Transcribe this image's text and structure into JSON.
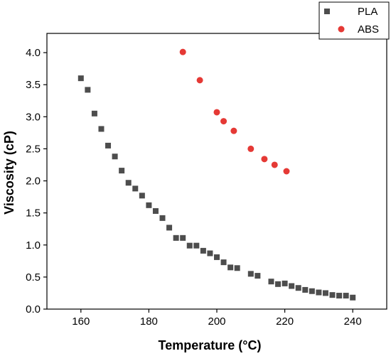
{
  "chart_data": {
    "type": "scatter",
    "xlabel": "Temperature (°C)",
    "ylabel": "Viscosity (cP)",
    "xlim": [
      150,
      250
    ],
    "ylim": [
      0,
      4.3
    ],
    "x_ticks": [
      160,
      180,
      200,
      220,
      240
    ],
    "y_ticks": [
      0.0,
      0.5,
      1.0,
      1.5,
      2.0,
      2.5,
      3.0,
      3.5,
      4.0
    ],
    "x_tick_labels": [
      "160",
      "180",
      "200",
      "220",
      "240"
    ],
    "y_tick_labels": [
      "0.0",
      "0.5",
      "1.0",
      "1.5",
      "2.0",
      "2.5",
      "3.0",
      "3.5",
      "4.0"
    ],
    "grid": false,
    "legend": "top-right, outside plot",
    "series": [
      {
        "name": "PLA",
        "marker": "square",
        "color": "#4d4d4d",
        "points": [
          [
            160,
            3.6
          ],
          [
            162,
            3.42
          ],
          [
            164,
            3.05
          ],
          [
            166,
            2.81
          ],
          [
            168,
            2.55
          ],
          [
            170,
            2.38
          ],
          [
            172,
            2.16
          ],
          [
            174,
            1.97
          ],
          [
            176,
            1.88
          ],
          [
            178,
            1.77
          ],
          [
            180,
            1.62
          ],
          [
            182,
            1.53
          ],
          [
            184,
            1.42
          ],
          [
            186,
            1.27
          ],
          [
            188,
            1.11
          ],
          [
            190,
            1.11
          ],
          [
            192,
            0.99
          ],
          [
            194,
            0.99
          ],
          [
            196,
            0.91
          ],
          [
            198,
            0.87
          ],
          [
            200,
            0.81
          ],
          [
            202,
            0.73
          ],
          [
            204,
            0.65
          ],
          [
            206,
            0.64
          ],
          [
            210,
            0.55
          ],
          [
            212,
            0.52
          ],
          [
            216,
            0.43
          ],
          [
            218,
            0.39
          ],
          [
            220,
            0.4
          ],
          [
            222,
            0.36
          ],
          [
            224,
            0.33
          ],
          [
            226,
            0.3
          ],
          [
            228,
            0.28
          ],
          [
            230,
            0.26
          ],
          [
            232,
            0.25
          ],
          [
            234,
            0.22
          ],
          [
            236,
            0.21
          ],
          [
            238,
            0.21
          ],
          [
            240,
            0.18
          ]
        ]
      },
      {
        "name": "ABS",
        "marker": "circle",
        "color": "#e53935",
        "points": [
          [
            190,
            4.01
          ],
          [
            195,
            3.57
          ],
          [
            200,
            3.07
          ],
          [
            202,
            2.93
          ],
          [
            205,
            2.78
          ],
          [
            210,
            2.5
          ],
          [
            214,
            2.34
          ],
          [
            217,
            2.25
          ],
          [
            220.5,
            2.15
          ]
        ]
      }
    ]
  }
}
